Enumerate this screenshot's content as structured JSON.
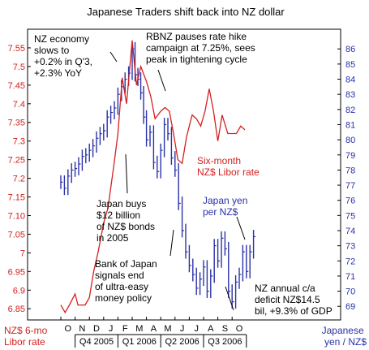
{
  "chart_data": {
    "type": "line",
    "title": "Japanese Traders shift back into NZ dollar",
    "left_axis": {
      "label": [
        "NZ$ 6-mo",
        "Libor rate"
      ],
      "ticks": [
        "6.85",
        "6.9",
        "6.95",
        "7",
        "7.05",
        "7.10",
        "7.15",
        "7.2",
        "7.25",
        "7.3",
        "7.35",
        "7.4",
        "7.45",
        "7.5",
        "7.55"
      ],
      "range": [
        6.82,
        7.6
      ]
    },
    "right_axis": {
      "label": [
        "Japanese",
        "yen / NZ$"
      ],
      "ticks": [
        "69",
        "70",
        "71",
        "72",
        "73",
        "74",
        "75",
        "76",
        "77",
        "78",
        "79",
        "80",
        "81",
        "82",
        "83",
        "84",
        "85",
        "86"
      ],
      "range": [
        68.1,
        87.3
      ]
    },
    "x_axis": {
      "months": [
        "O",
        "N",
        "D",
        "J",
        "F",
        "M",
        "A",
        "M",
        "J",
        "J",
        "A",
        "S",
        "O"
      ],
      "quarters": [
        "Q4 2005",
        "Q1 2006",
        "Q2 2006",
        "Q3 2006"
      ]
    },
    "series": [
      {
        "name": "Six-month NZ$ Libor rate",
        "axis": "left",
        "color": "#d42020",
        "x": [
          0,
          0.3,
          0.6,
          1.0,
          1.2,
          1.5,
          1.7,
          2.0,
          2.3,
          2.6,
          3.0,
          3.3,
          3.7,
          4.0,
          4.3,
          4.6,
          5.0,
          5.3,
          5.6,
          5.8,
          6.0,
          6.3,
          6.6,
          7.0,
          7.3,
          7.6,
          7.9,
          8.2,
          8.5,
          8.8,
          9.2,
          9.5,
          9.8,
          10.1,
          10.4,
          10.7,
          11.0,
          11.3,
          11.7,
          12.0,
          12.3,
          12.6,
          12.9
        ],
        "values": [
          6.86,
          6.84,
          6.86,
          6.89,
          6.86,
          6.86,
          6.86,
          6.88,
          6.95,
          7.0,
          7.08,
          7.12,
          7.23,
          7.32,
          7.47,
          7.4,
          7.57,
          7.45,
          7.5,
          7.48,
          7.46,
          7.42,
          7.36,
          7.38,
          7.39,
          7.38,
          7.32,
          7.25,
          7.24,
          7.31,
          7.37,
          7.36,
          7.34,
          7.38,
          7.44,
          7.38,
          7.3,
          7.37,
          7.32,
          7.32,
          7.32,
          7.34,
          7.33
        ]
      },
      {
        "name": "Japan yen per NZ$",
        "axis": "right",
        "color": "#2a32a8",
        "x": [
          0.0,
          0.25,
          0.5,
          0.75,
          1.0,
          1.25,
          1.5,
          1.75,
          2.0,
          2.25,
          2.5,
          2.75,
          3.0,
          3.25,
          3.5,
          3.75,
          4.0,
          4.25,
          4.5,
          4.75,
          5.0,
          5.2,
          5.4,
          5.6,
          5.8,
          6.0,
          6.25,
          6.5,
          6.75,
          7.0,
          7.25,
          7.5,
          7.75,
          8.0,
          8.25,
          8.5,
          8.75,
          9.0,
          9.25,
          9.5,
          9.75,
          10.0,
          10.25,
          10.5,
          10.75,
          11.0,
          11.25,
          11.5,
          11.75,
          12.0,
          12.25,
          12.5,
          12.75,
          13.0,
          13.25,
          13.5
        ],
        "values": [
          77.2,
          76.8,
          77.6,
          78.0,
          78.1,
          78.4,
          78.9,
          79.0,
          79.3,
          79.6,
          80.1,
          80.4,
          80.6,
          81.5,
          81.8,
          82.1,
          83.0,
          83.5,
          84.0,
          84.4,
          86.0,
          84.3,
          84.0,
          83.1,
          81.5,
          80.0,
          80.5,
          78.5,
          77.9,
          79.3,
          81.0,
          80.4,
          78.8,
          78.0,
          75.8,
          74.0,
          72.6,
          71.7,
          71.1,
          70.2,
          70.8,
          71.6,
          70.0,
          71.0,
          73.0,
          72.0,
          73.5,
          72.8,
          70.0,
          69.3,
          70.6,
          71.1,
          72.6,
          71.3,
          72.6,
          73.6
        ]
      }
    ],
    "annotations": [
      [
        "NZ economy",
        "slows to",
        "+0.2% in Q'3,",
        "+2.3% YoY"
      ],
      [
        "RBNZ pauses rate hike",
        "campaign at 7.25%, sees",
        "peak in tightening cycle"
      ],
      [
        "Six-month",
        "NZ$ Libor rate"
      ],
      [
        "Japan buys",
        "$12 billion",
        "of NZ$ bonds",
        "in 2005"
      ],
      [
        "Japan yen",
        "per NZ$"
      ],
      [
        "Bank of Japan",
        "signals end",
        "of ultra-easy",
        "money policy"
      ],
      [
        "NZ annual c/a",
        "deficit NZ$14.5",
        "bil, +9.3% of GDP"
      ]
    ],
    "grid": false,
    "legend": "none"
  }
}
